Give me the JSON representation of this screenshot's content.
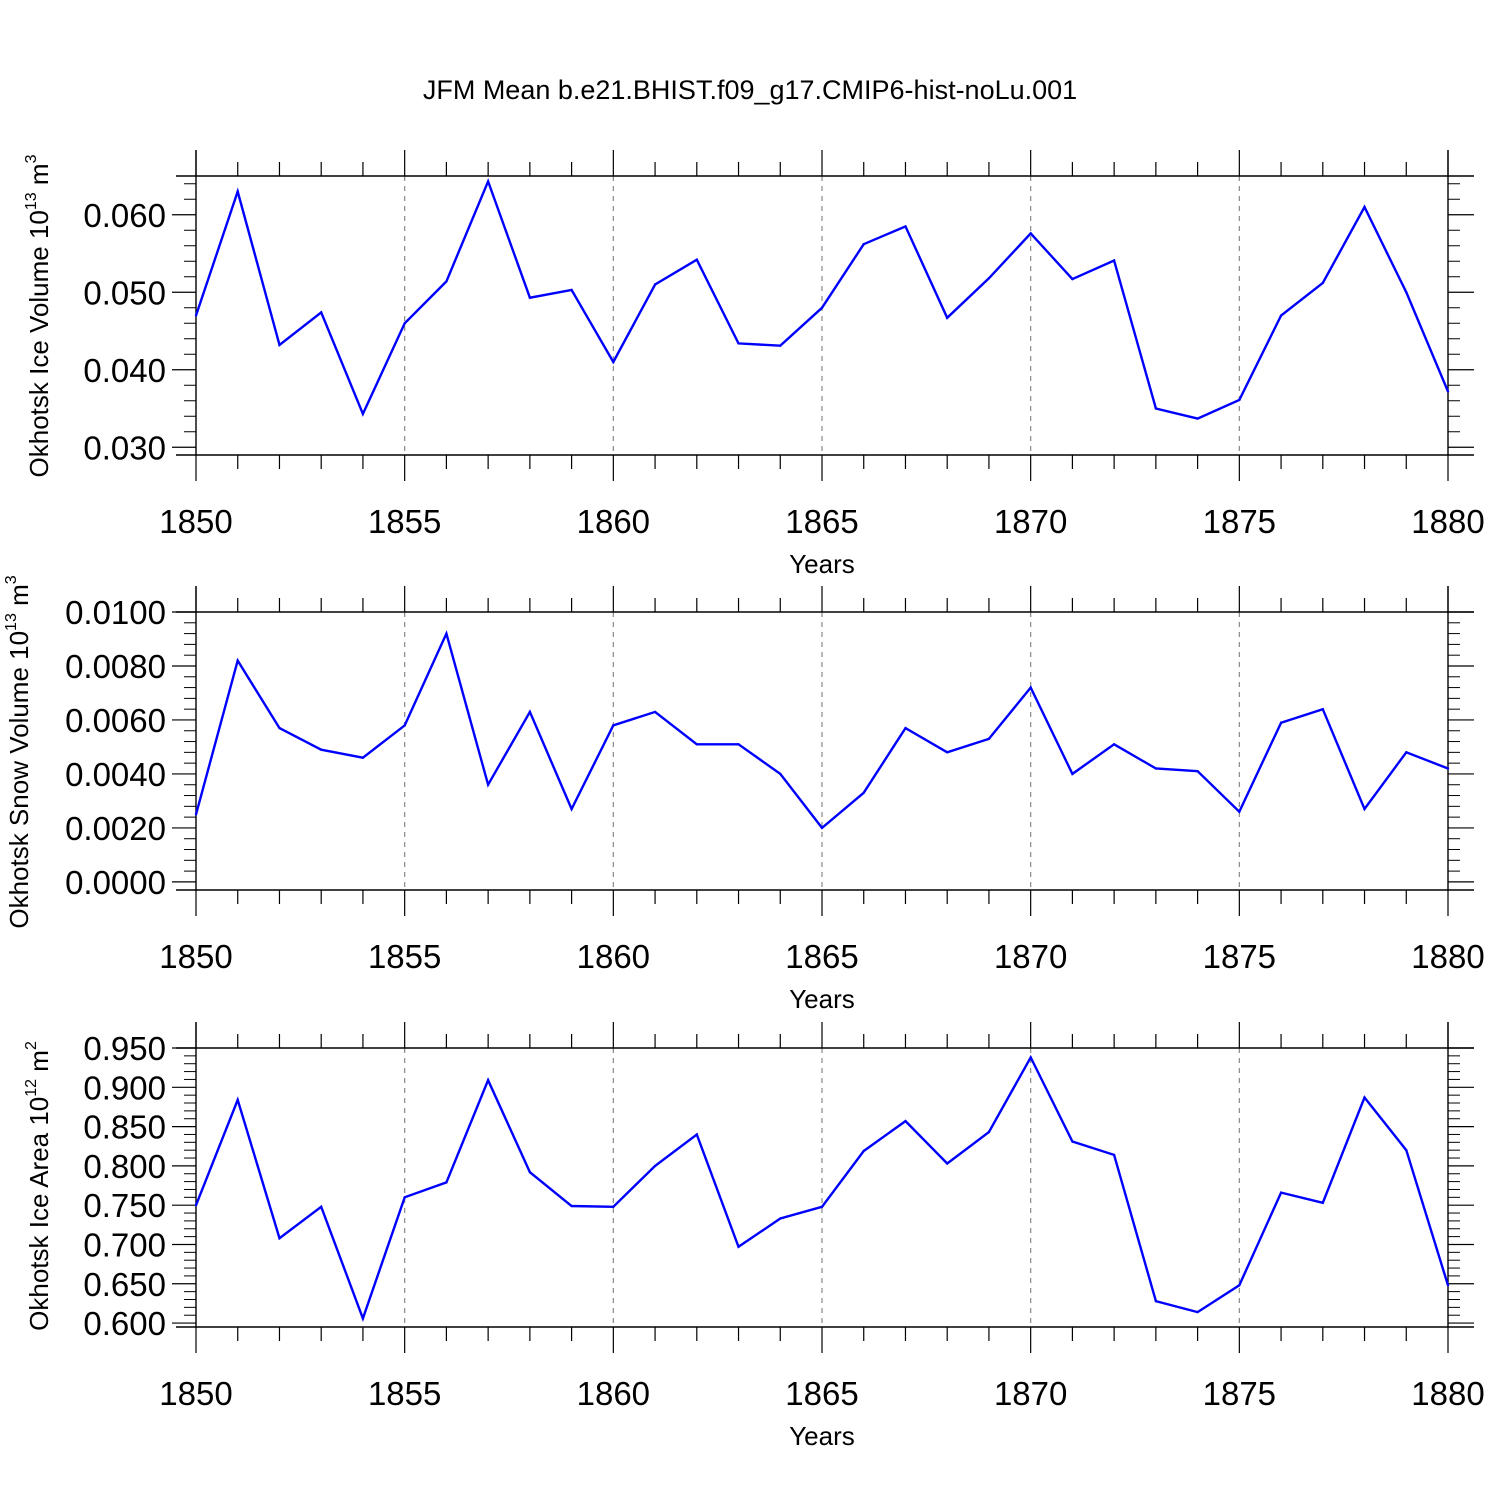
{
  "title": "JFM Mean b.e21.BHIST.f09_g17.CMIP6-hist-noLu.001",
  "line_color": "#0000ff",
  "chart_data": [
    {
      "type": "line",
      "ylabel": "Okhotsk Ice Volume 10",
      "ylabel_exp": "13",
      "ylabel_unit": " m",
      "ylabel_unit_exp": "3",
      "xlabel": "Years",
      "ylim": [
        0.029,
        0.065
      ],
      "yticks": [
        0.03,
        0.04,
        0.05,
        0.06
      ],
      "ytick_labels": [
        "0.030",
        "0.040",
        "0.050",
        "0.060"
      ],
      "xlim": [
        1850,
        1880
      ],
      "xticks": [
        1850,
        1855,
        1860,
        1865,
        1870,
        1875,
        1880
      ],
      "xtick_labels": [
        "1850",
        "1855",
        "1860",
        "1865",
        "1870",
        "1875",
        "1880"
      ],
      "grid": "vertical-dashed",
      "x": [
        1850,
        1851,
        1852,
        1853,
        1854,
        1855,
        1856,
        1857,
        1858,
        1859,
        1860,
        1861,
        1862,
        1863,
        1864,
        1865,
        1866,
        1867,
        1868,
        1869,
        1870,
        1871,
        1872,
        1873,
        1874,
        1875,
        1876,
        1877,
        1878,
        1879,
        1880
      ],
      "values": [
        0.047,
        0.063,
        0.0432,
        0.0474,
        0.0343,
        0.046,
        0.0514,
        0.0643,
        0.0493,
        0.0503,
        0.041,
        0.051,
        0.0542,
        0.0434,
        0.0431,
        0.048,
        0.0562,
        0.0585,
        0.0467,
        0.0518,
        0.0576,
        0.0517,
        0.0541,
        0.035,
        0.0337,
        0.0361,
        0.047,
        0.0512,
        0.061,
        0.05,
        0.0372
      ]
    },
    {
      "type": "line",
      "ylabel": "Okhotsk Snow Volume 10",
      "ylabel_exp": "13",
      "ylabel_unit": " m",
      "ylabel_unit_exp": "3",
      "xlabel": "Years",
      "ylim": [
        -0.0003,
        0.01
      ],
      "yticks": [
        0.0,
        0.002,
        0.004,
        0.006,
        0.008,
        0.01
      ],
      "ytick_labels": [
        "0.0000",
        "0.0020",
        "0.0040",
        "0.0060",
        "0.0080",
        "0.0100"
      ],
      "xlim": [
        1850,
        1880
      ],
      "xticks": [
        1850,
        1855,
        1860,
        1865,
        1870,
        1875,
        1880
      ],
      "xtick_labels": [
        "1850",
        "1855",
        "1860",
        "1865",
        "1870",
        "1875",
        "1880"
      ],
      "grid": "vertical-dashed",
      "x": [
        1850,
        1851,
        1852,
        1853,
        1854,
        1855,
        1856,
        1857,
        1858,
        1859,
        1860,
        1861,
        1862,
        1863,
        1864,
        1865,
        1866,
        1867,
        1868,
        1869,
        1870,
        1871,
        1872,
        1873,
        1874,
        1875,
        1876,
        1877,
        1878,
        1879,
        1880
      ],
      "values": [
        0.0025,
        0.0082,
        0.0057,
        0.0049,
        0.0046,
        0.0058,
        0.0092,
        0.0036,
        0.0063,
        0.0027,
        0.0058,
        0.0063,
        0.0051,
        0.0051,
        0.004,
        0.002,
        0.0033,
        0.0057,
        0.0048,
        0.0053,
        0.0072,
        0.004,
        0.0051,
        0.0042,
        0.0041,
        0.0026,
        0.0059,
        0.0064,
        0.0027,
        0.0048,
        0.0042
      ]
    },
    {
      "type": "line",
      "ylabel": "Okhotsk Ice Area 10",
      "ylabel_exp": "12",
      "ylabel_unit": " m",
      "ylabel_unit_exp": "2",
      "xlabel": "Years",
      "ylim": [
        0.595,
        0.95
      ],
      "yticks": [
        0.6,
        0.65,
        0.7,
        0.75,
        0.8,
        0.85,
        0.9,
        0.95
      ],
      "ytick_labels": [
        "0.600",
        "0.650",
        "0.700",
        "0.750",
        "0.800",
        "0.850",
        "0.900",
        "0.950"
      ],
      "xlim": [
        1850,
        1880
      ],
      "xticks": [
        1850,
        1855,
        1860,
        1865,
        1870,
        1875,
        1880
      ],
      "xtick_labels": [
        "1850",
        "1855",
        "1860",
        "1865",
        "1870",
        "1875",
        "1880"
      ],
      "grid": "vertical-dashed",
      "x": [
        1850,
        1851,
        1852,
        1853,
        1854,
        1855,
        1856,
        1857,
        1858,
        1859,
        1860,
        1861,
        1862,
        1863,
        1864,
        1865,
        1866,
        1867,
        1868,
        1869,
        1870,
        1871,
        1872,
        1873,
        1874,
        1875,
        1876,
        1877,
        1878,
        1879,
        1880
      ],
      "values": [
        0.75,
        0.884,
        0.708,
        0.748,
        0.606,
        0.76,
        0.779,
        0.909,
        0.792,
        0.749,
        0.748,
        0.8,
        0.84,
        0.697,
        0.733,
        0.748,
        0.819,
        0.857,
        0.803,
        0.843,
        0.938,
        0.831,
        0.814,
        0.628,
        0.614,
        0.648,
        0.766,
        0.753,
        0.887,
        0.82,
        0.648
      ]
    }
  ]
}
